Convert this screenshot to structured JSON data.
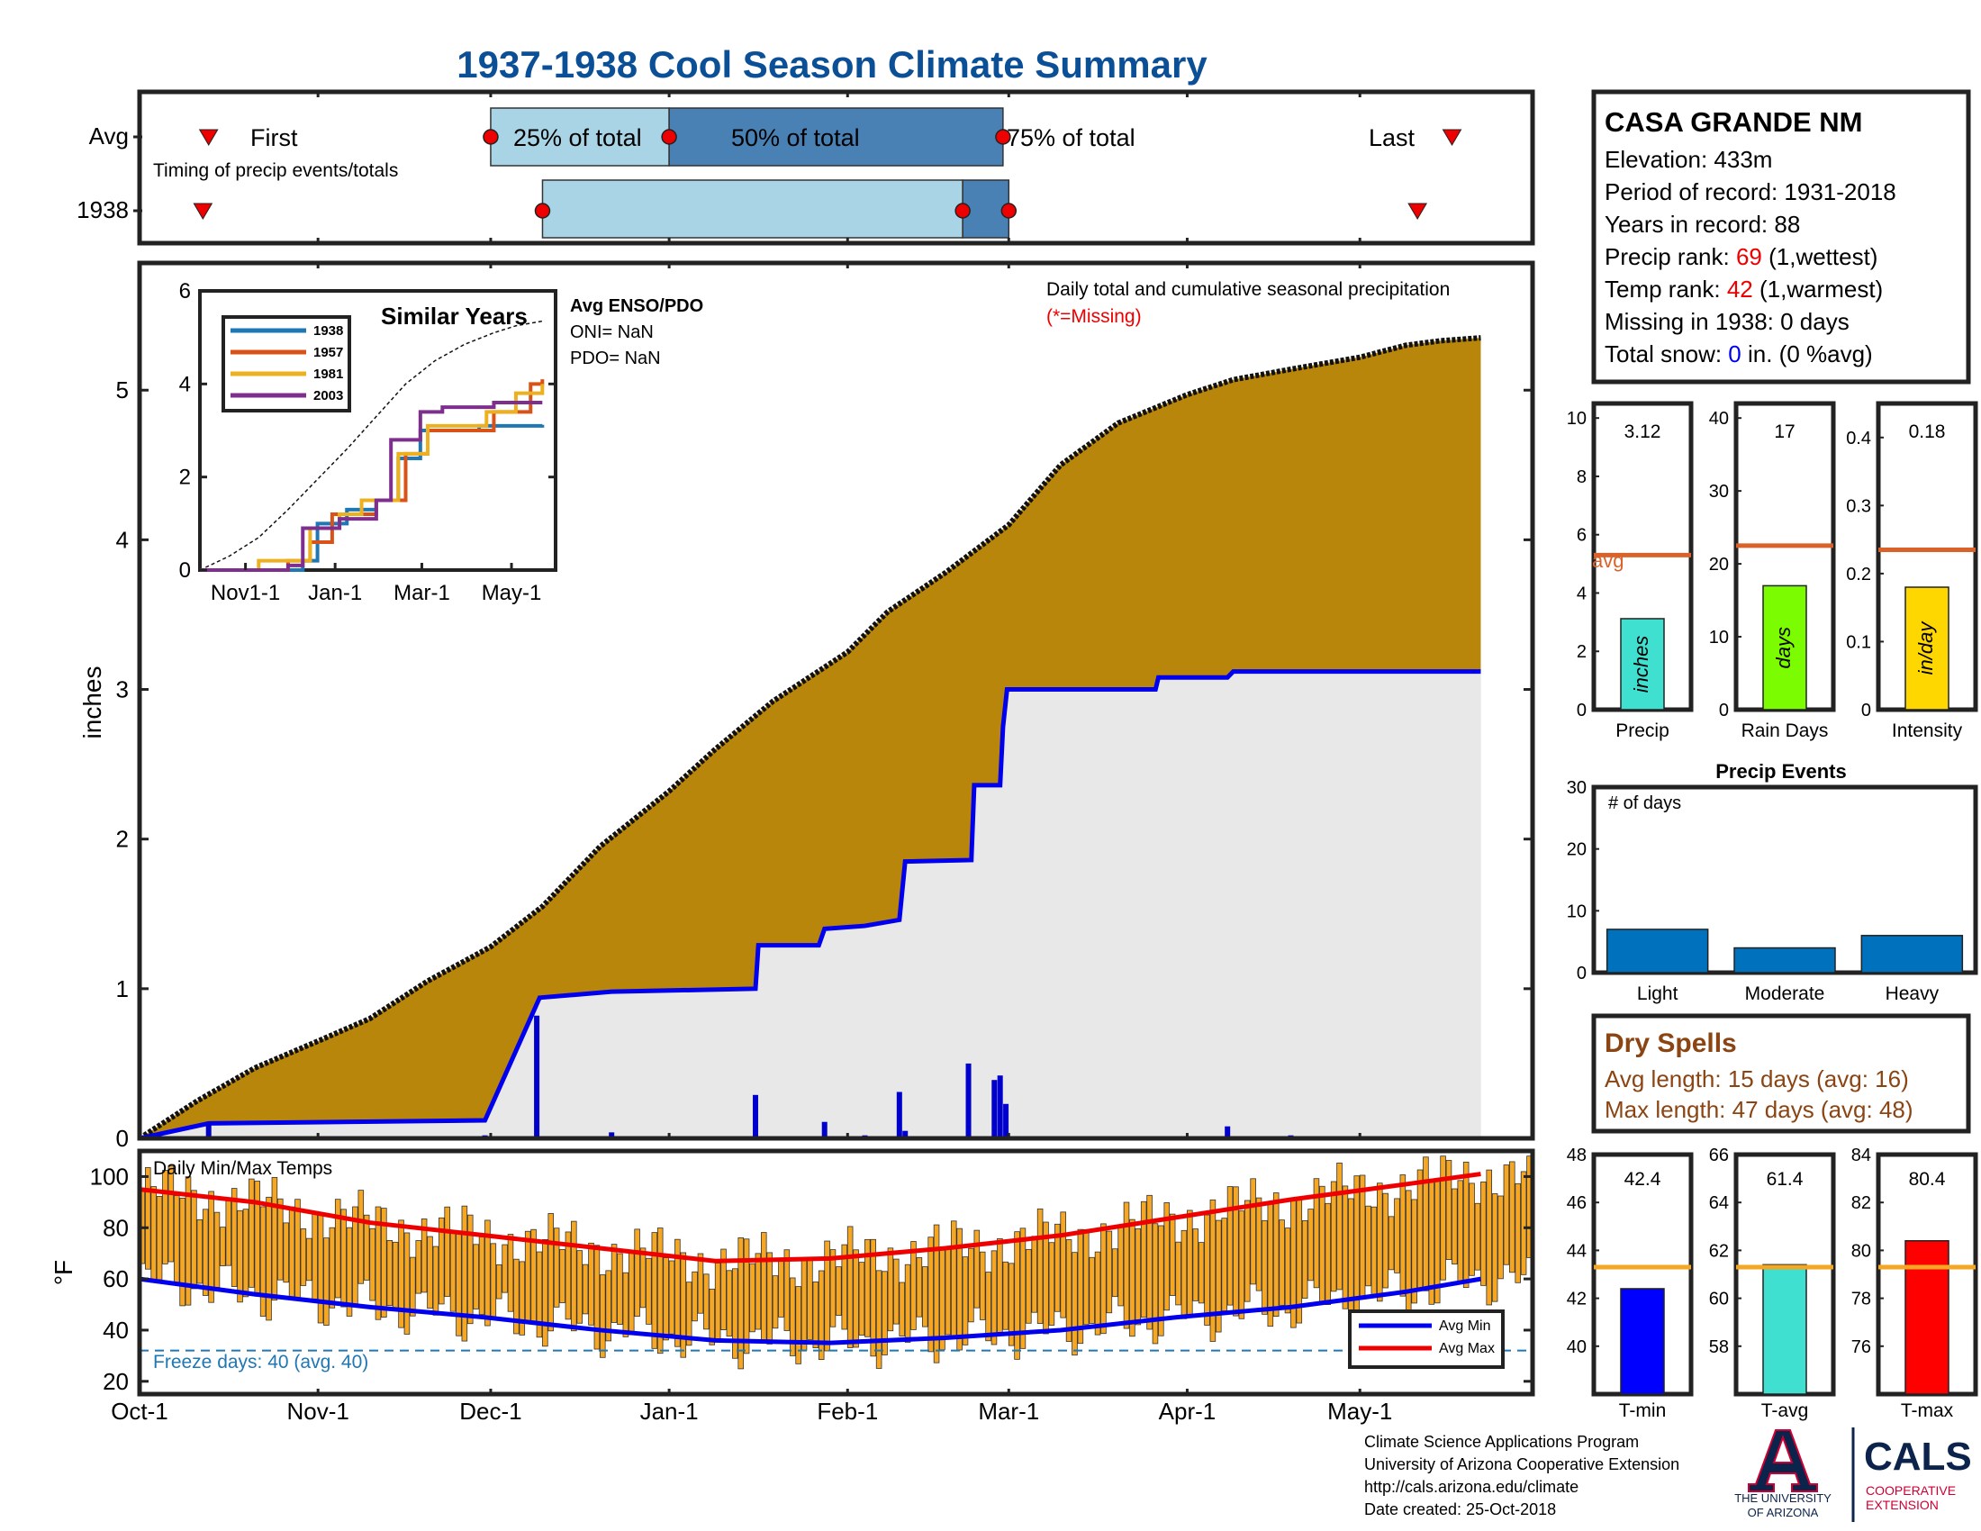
{
  "title": "1937-1938 Cool Season Climate Summary",
  "timing": {
    "row_labels": [
      "Avg",
      "1938"
    ],
    "note": "Timing of precip events/totals",
    "first_label": "First",
    "last_label": "Last",
    "p25_label": "25% of total",
    "p50_label": "50% of total",
    "p75_label": "75% of total",
    "avg_first": "Oct-13",
    "avg_p25": "Dec-1",
    "avg_p50": "Jan-1",
    "avg_p75": "Feb-28",
    "avg_last": "May-17",
    "y1938_first": "Oct-12",
    "y1938_p25": "Dec-10",
    "y1938_p50": "Feb-21",
    "y1938_p75": "Feb-29",
    "y1938_last": "May-11"
  },
  "station": {
    "name": "CASA GRANDE NM",
    "elevation": "Elevation: 433m",
    "period": "Period of record: 1931-2018",
    "years": "Years in record: 88",
    "precip_rank_prefix": "Precip rank: ",
    "precip_rank_value": "69",
    "precip_rank_suffix": " (1,wettest)",
    "temp_rank_prefix": "Temp rank: ",
    "temp_rank_value": "42",
    "temp_rank_suffix": " (1,warmest)",
    "missing": "Missing in 1938: 0 days",
    "snow_prefix": "Total snow: ",
    "snow_value": "0",
    "snow_suffix": " in. (0 %avg)"
  },
  "main_chart": {
    "ylabel": "inches",
    "legend_line1": "Daily total and cumulative seasonal precipitation",
    "legend_line2": "(*=Missing)",
    "x_ticks": [
      "Oct-1",
      "Nov-1",
      "Dec-1",
      "Jan-1",
      "Feb-1",
      "Mar-1",
      "Apr-1",
      "May-1"
    ],
    "y_ticks": [
      "0",
      "1",
      "2",
      "3",
      "4",
      "5"
    ]
  },
  "inset": {
    "title": "Similar Years",
    "enso_title": "Avg ENSO/PDO",
    "oni": "ONI= NaN",
    "pdo": "PDO= NaN",
    "x_ticks": [
      "Nov1-1",
      "Jan-1",
      "Mar-1",
      "May-1"
    ],
    "y_ticks": [
      "0",
      "2",
      "4",
      "6"
    ],
    "legend": [
      "1938",
      "1957",
      "1981",
      "2003"
    ]
  },
  "temp_chart": {
    "title": "Daily Min/Max Temps",
    "ylabel": "°F",
    "y_ticks": [
      "20",
      "40",
      "60",
      "80",
      "100"
    ],
    "freeze_text": "Freeze days: 40 (avg. 40)",
    "legend_min": "Avg Min",
    "legend_max": "Avg Max"
  },
  "mini_bars": {
    "precip": {
      "label": "Precip",
      "value": "3.12",
      "unit": "inches",
      "avg": 5.3,
      "y_ticks": [
        "0",
        "2",
        "4",
        "6",
        "8",
        "10"
      ],
      "avg_label": "avg"
    },
    "raindays": {
      "label": "Rain Days",
      "value": "17",
      "unit": "days",
      "avg": 22.5,
      "y_ticks": [
        "0",
        "10",
        "20",
        "30",
        "40"
      ]
    },
    "intensity": {
      "label": "Intensity",
      "value": "0.18",
      "unit": "in/day",
      "avg": 0.235,
      "y_ticks": [
        "0",
        "0.1",
        "0.2",
        "0.3",
        "0.4"
      ]
    }
  },
  "events": {
    "title": "Precip Events",
    "ylabel": "# of days",
    "categories": [
      "Light",
      "Moderate",
      "Heavy"
    ],
    "values": [
      7,
      4,
      6
    ],
    "y_ticks": [
      "0",
      "10",
      "20",
      "30"
    ]
  },
  "dry_spells": {
    "title": "Dry Spells",
    "avg": "Avg length: 15 days (avg: 16)",
    "max": "Max length: 47 days (avg: 48)"
  },
  "temp_bars": {
    "tmin": {
      "label": "T-min",
      "value": "42.4",
      "avg": 43.3,
      "y_ticks": [
        "40",
        "42",
        "44",
        "46",
        "48"
      ]
    },
    "tavg": {
      "label": "T-avg",
      "value": "61.4",
      "avg": 61.3,
      "y_ticks": [
        "58",
        "60",
        "62",
        "64",
        "66"
      ]
    },
    "tmax": {
      "label": "T-max",
      "value": "80.4",
      "avg": 79.3,
      "y_ticks": [
        "76",
        "78",
        "80",
        "82",
        "84"
      ]
    }
  },
  "footer": {
    "line1": "Climate Science Applications Program",
    "line2": "University of Arizona Cooperative Extension",
    "line3": "http://cals.arizona.edu/climate",
    "line4": " Date created: 25-Oct-2018",
    "ua_logo_text1": "THE UNIVERSITY",
    "ua_logo_text2": "OF ARIZONA",
    "cals_logo": "CALS",
    "cals_sub1": "COOPERATIVE",
    "cals_sub2": "EXTENSION"
  },
  "colors": {
    "title": "#0b4f96",
    "avg_fill": "#b8860b",
    "obs_fill": "#e8e8e8",
    "obs_line": "#0000ee",
    "light_blue": "#a9d4e6",
    "mid_blue": "#4a81b5",
    "marker_red": "#ee0000",
    "temp_bar": "#f5a623",
    "avg_line_orange": "#d9622b",
    "dry_brown": "#8b4513"
  },
  "chart_data": [
    {
      "type": "area",
      "title": "Daily total and cumulative seasonal precipitation",
      "ylabel": "inches",
      "ylim": [
        0,
        5.85
      ],
      "x_unit": "days since Oct-1",
      "series": [
        {
          "name": "Average cumulative precip",
          "x": [
            0,
            10,
            20,
            31,
            40,
            50,
            61,
            70,
            80,
            92,
            100,
            110,
            123,
            130,
            140,
            151,
            160,
            170,
            182,
            190,
            200,
            212,
            220,
            226,
            233
          ],
          "y": [
            0,
            0.25,
            0.47,
            0.65,
            0.8,
            1.05,
            1.28,
            1.55,
            1.95,
            2.32,
            2.6,
            2.92,
            3.25,
            3.52,
            3.78,
            4.1,
            4.5,
            4.78,
            4.97,
            5.07,
            5.14,
            5.22,
            5.3,
            5.33,
            5.35
          ]
        },
        {
          "name": "1938 cumulative precip",
          "x": [
            0,
            12,
            60,
            69.5,
            82,
            107,
            107.5,
            118,
            119,
            126,
            132,
            133,
            144.5,
            145,
            149.5,
            150,
            150.7,
            176.5,
            177,
            189,
            190,
            233
          ],
          "y": [
            0,
            0.1,
            0.12,
            0.94,
            0.98,
            1.0,
            1.29,
            1.29,
            1.4,
            1.42,
            1.46,
            1.85,
            1.86,
            2.36,
            2.36,
            2.75,
            3.0,
            3.0,
            3.08,
            3.08,
            3.12,
            3.12
          ]
        }
      ],
      "daily_precip_1938": {
        "x": [
          12,
          60,
          69,
          82,
          107,
          119,
          126,
          132,
          133,
          144,
          148.5,
          149.5,
          150.5,
          189,
          200
        ],
        "y": [
          0.1,
          0.02,
          0.82,
          0.04,
          0.29,
          0.11,
          0.02,
          0.31,
          0.05,
          0.5,
          0.39,
          0.42,
          0.23,
          0.08,
          0.02
        ]
      }
    },
    {
      "type": "line",
      "title": "Similar Years",
      "ylim": [
        0,
        6
      ],
      "x_unit": "days since Oct-1",
      "avg_x": [
        0,
        20,
        40,
        60,
        80,
        100,
        120,
        140,
        160,
        180,
        200,
        215,
        233
      ],
      "avg_y": [
        0,
        0.3,
        0.7,
        1.3,
        1.95,
        2.6,
        3.3,
        4.0,
        4.5,
        4.85,
        5.1,
        5.25,
        5.35
      ],
      "series": [
        {
          "name": "1938",
          "x": [
            0,
            70,
            80,
            100,
            120,
            135,
            150,
            190,
            233
          ],
          "y": [
            0,
            0.2,
            1.0,
            1.3,
            1.5,
            2.4,
            3.0,
            3.1,
            3.12
          ]
        },
        {
          "name": "1957",
          "x": [
            0,
            60,
            75,
            90,
            120,
            140,
            155,
            200,
            225,
            233
          ],
          "y": [
            0,
            0.2,
            0.6,
            1.2,
            1.5,
            2.5,
            3.0,
            3.4,
            4.0,
            4.1
          ]
        },
        {
          "name": "1981",
          "x": [
            0,
            40,
            75,
            95,
            110,
            135,
            155,
            195,
            215,
            233
          ],
          "y": [
            0,
            0.2,
            0.9,
            1.2,
            1.5,
            2.5,
            3.1,
            3.4,
            3.8,
            4.0
          ]
        },
        {
          "name": "2003",
          "x": [
            0,
            60,
            70,
            95,
            120,
            130,
            150,
            165,
            200,
            233
          ],
          "y": [
            0,
            0.1,
            0.9,
            1.1,
            1.5,
            2.8,
            3.4,
            3.5,
            3.6,
            3.6
          ]
        }
      ]
    },
    {
      "type": "bar",
      "title": "Daily Min/Max Temps",
      "ylabel": "°F",
      "ylim": [
        15,
        110
      ],
      "x_unit": "days since Oct-1",
      "avg_min": {
        "x": [
          0,
          20,
          40,
          60,
          80,
          100,
          120,
          140,
          160,
          180,
          200,
          220,
          233
        ],
        "y": [
          60,
          54,
          49,
          45,
          40,
          36,
          35,
          37,
          40,
          45,
          49,
          55,
          60
        ]
      },
      "avg_max": {
        "x": [
          0,
          20,
          40,
          60,
          80,
          100,
          120,
          140,
          160,
          180,
          200,
          220,
          233
        ],
        "y": [
          95,
          90,
          82,
          77,
          72,
          67,
          68,
          72,
          77,
          84,
          91,
          97,
          101
        ]
      },
      "freeze_line": 32
    },
    {
      "type": "bar",
      "title": "Precip",
      "categories": [
        "Precip"
      ],
      "values": [
        3.12
      ],
      "ylim": [
        0,
        10.5
      ],
      "avg": 5.3
    },
    {
      "type": "bar",
      "title": "Rain Days",
      "categories": [
        "Rain Days"
      ],
      "values": [
        17
      ],
      "ylim": [
        0,
        42
      ],
      "avg": 22.5
    },
    {
      "type": "bar",
      "title": "Intensity",
      "categories": [
        "Intensity"
      ],
      "values": [
        0.18
      ],
      "ylim": [
        0,
        0.45
      ],
      "avg": 0.235
    },
    {
      "type": "bar",
      "title": "Precip Events",
      "categories": [
        "Light",
        "Moderate",
        "Heavy"
      ],
      "values": [
        7,
        4,
        6
      ],
      "ylim": [
        0,
        30
      ],
      "ylabel": "# of days"
    },
    {
      "type": "bar",
      "title": "T-min",
      "categories": [
        "T-min"
      ],
      "values": [
        42.4
      ],
      "ylim": [
        38,
        48
      ],
      "avg": 43.3
    },
    {
      "type": "bar",
      "title": "T-avg",
      "categories": [
        "T-avg"
      ],
      "values": [
        61.4
      ],
      "ylim": [
        56,
        66
      ],
      "avg": 61.3
    },
    {
      "type": "bar",
      "title": "T-max",
      "categories": [
        "T-max"
      ],
      "values": [
        80.4
      ],
      "ylim": [
        74,
        84
      ],
      "avg": 79.3
    }
  ]
}
